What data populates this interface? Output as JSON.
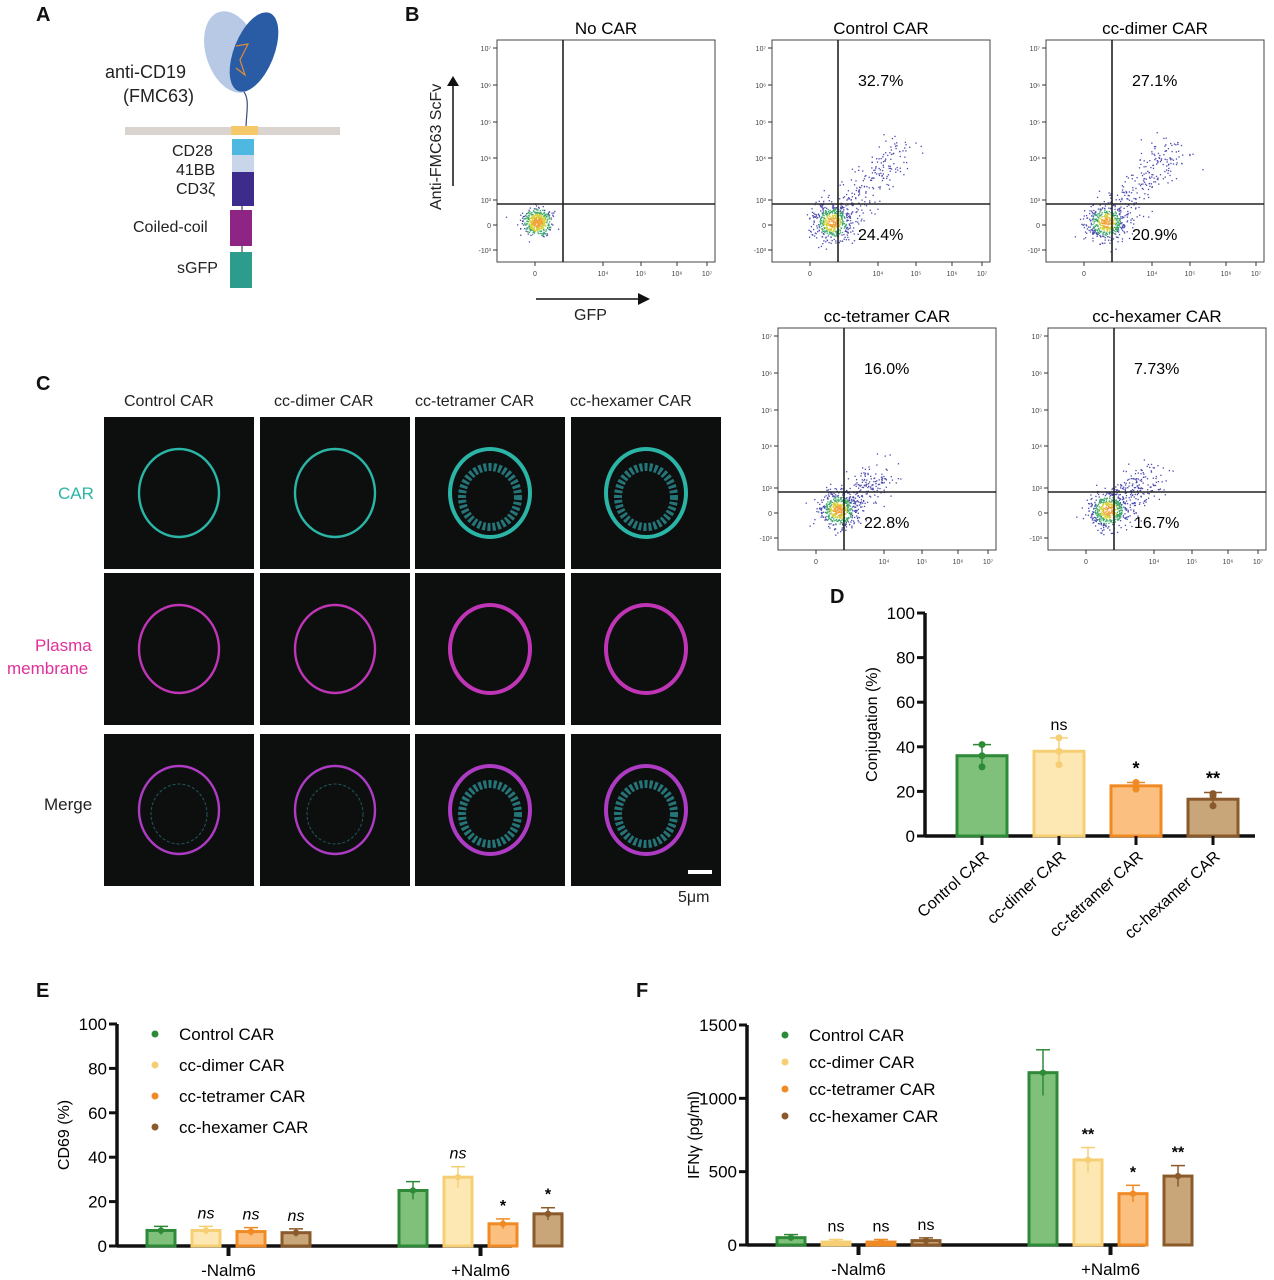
{
  "panels": {
    "A": {
      "label": "A",
      "antibody_label": "anti-CD19",
      "antibody_sub": "(FMC63)",
      "domains": [
        "CD28",
        "41BB",
        "CD3ζ",
        "Coiled-coil",
        "sGFP"
      ],
      "colors": {
        "vl": "#b8c9e6",
        "vh": "#2a5ca6",
        "membrane": "#d9d4d0",
        "tm": "#f5c96a",
        "cd28": "#4fb8e0",
        "41bb": "#c9d6ea",
        "cd3z": "#3d2c8c",
        "cc": "#8e2585",
        "sgfp": "#2e9c8c"
      }
    },
    "B": {
      "label": "B",
      "y_axis_label": "Anti-FMC63 ScFv",
      "x_axis_label": "GFP",
      "y_ticks": [
        "10⁷",
        "10⁶",
        "10⁵",
        "10⁴",
        "10³",
        "0",
        "-10³"
      ],
      "x_ticks": [
        "0",
        "10⁴",
        "10⁵",
        "10⁶",
        "10⁷"
      ],
      "plots": [
        {
          "title": "No CAR",
          "upper": "",
          "lower": ""
        },
        {
          "title": "Control CAR",
          "upper": "32.7%",
          "lower": "24.4%"
        },
        {
          "title": "cc-dimer CAR",
          "upper": "27.1%",
          "lower": "20.9%"
        },
        {
          "title": "cc-tetramer CAR",
          "upper": "16.0%",
          "lower": "22.8%"
        },
        {
          "title": "cc-hexamer CAR",
          "upper": "7.73%",
          "lower": "16.7%"
        }
      ]
    },
    "C": {
      "label": "C",
      "columns": [
        "Control CAR",
        "cc-dimer CAR",
        "cc-tetramer CAR",
        "cc-hexamer CAR"
      ],
      "rows": [
        {
          "label": "CAR",
          "color": "#2ab5a5"
        },
        {
          "label": "Plasma\nmembrane",
          "label1": "Plasma",
          "label2": "membrane",
          "color": "#e0309a"
        },
        {
          "label": "Merge",
          "color": "#222222"
        }
      ],
      "scale_bar": "5μm"
    },
    "D": {
      "label": "D"
    },
    "E": {
      "label": "E"
    },
    "F": {
      "label": "F"
    }
  },
  "chart_data": [
    {
      "id": "D",
      "type": "bar",
      "title": "",
      "xlabel": "",
      "ylabel": "Conjugation (%)",
      "ylim": [
        0,
        100
      ],
      "yticks": [
        0,
        20,
        40,
        60,
        80,
        100
      ],
      "categories": [
        "Control CAR",
        "cc-dimer CAR",
        "cc-tetramer CAR",
        "cc-hexamer CAR"
      ],
      "values": [
        36,
        38,
        22.5,
        16.5
      ],
      "errors": [
        5,
        6,
        1.5,
        3
      ],
      "points": [
        [
          41,
          36,
          31
        ],
        [
          44,
          38,
          32
        ],
        [
          24,
          22,
          21
        ],
        [
          19,
          18,
          13.5
        ]
      ],
      "significance": [
        "",
        "ns",
        "*",
        "**"
      ],
      "fill_colors": [
        "#7fc17a",
        "#fde8b4",
        "#fbc07f",
        "#c9a67a"
      ],
      "edge_colors": [
        "#2f8a38",
        "#f6cf74",
        "#f08a24",
        "#8a5a2b"
      ]
    },
    {
      "id": "E",
      "type": "bar",
      "title": "",
      "xlabel": "",
      "ylabel": "CD69 (%)",
      "ylim": [
        0,
        100
      ],
      "yticks": [
        0,
        20,
        40,
        60,
        80,
        100
      ],
      "categories": [
        "-Nalm6",
        "+Nalm6"
      ],
      "series": [
        {
          "name": "Control CAR",
          "values": [
            7,
            25
          ],
          "significance": [
            "",
            ""
          ]
        },
        {
          "name": "cc-dimer CAR",
          "values": [
            7,
            31
          ],
          "significance": [
            "ns",
            "ns"
          ]
        },
        {
          "name": "cc-tetramer CAR",
          "values": [
            6.5,
            10
          ],
          "significance": [
            "ns",
            "*"
          ]
        },
        {
          "name": "cc-hexamer CAR",
          "values": [
            6,
            14.5
          ],
          "significance": [
            "ns",
            "*"
          ]
        }
      ],
      "legend": [
        "Control CAR",
        "cc-dimer CAR",
        "cc-tetramer CAR",
        "cc-hexamer CAR"
      ],
      "legend_position": "upper-left"
    },
    {
      "id": "F",
      "type": "bar",
      "title": "",
      "xlabel": "",
      "ylabel": "IFNγ (pg/ml)",
      "ylim": [
        0,
        1500
      ],
      "yticks": [
        0,
        500,
        1000,
        1500
      ],
      "categories": [
        "-Nalm6",
        "+Nalm6"
      ],
      "series": [
        {
          "name": "Control CAR",
          "values": [
            50,
            1175
          ],
          "significance": [
            "",
            ""
          ]
        },
        {
          "name": "cc-dimer CAR",
          "values": [
            20,
            580
          ],
          "significance": [
            "ns",
            "**"
          ]
        },
        {
          "name": "cc-tetramer CAR",
          "values": [
            20,
            350
          ],
          "significance": [
            "ns",
            "*"
          ]
        },
        {
          "name": "cc-hexamer CAR",
          "values": [
            30,
            470
          ],
          "significance": [
            "ns",
            "**"
          ]
        }
      ],
      "legend": [
        "Control CAR",
        "cc-dimer CAR",
        "cc-tetramer CAR",
        "cc-hexamer CAR"
      ],
      "legend_position": "upper-left"
    }
  ]
}
